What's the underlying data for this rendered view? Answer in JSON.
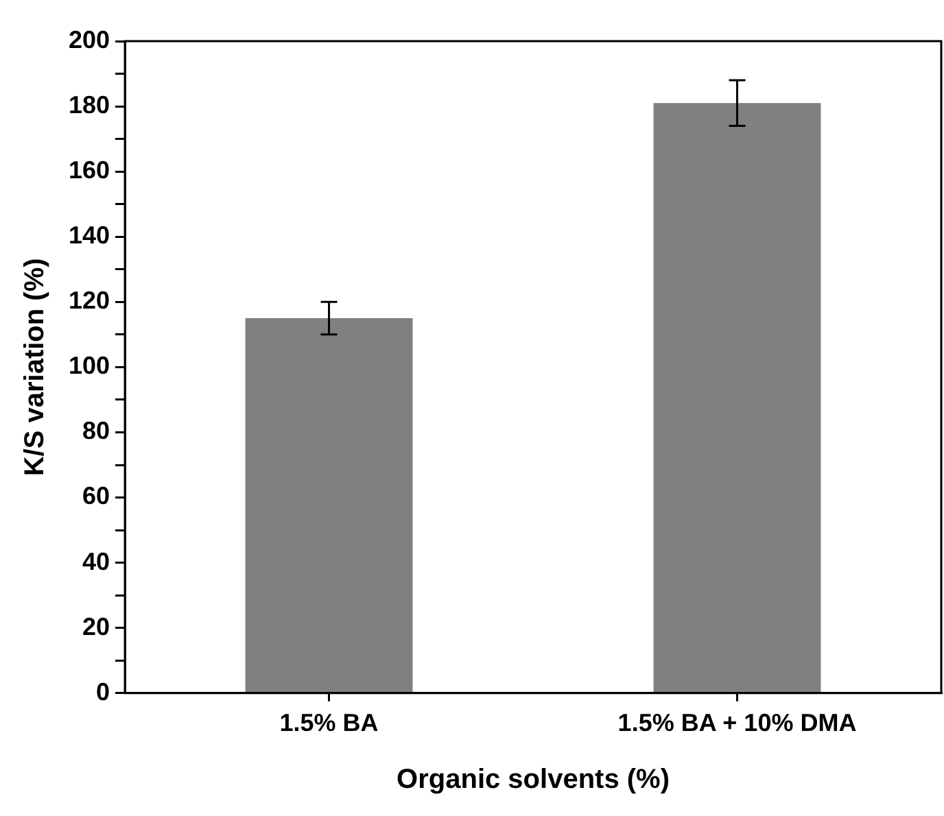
{
  "chart_data": {
    "type": "bar",
    "xlabel": "Organic solvents (%)",
    "ylabel": "K/S variation (%)",
    "categories": [
      "1.5% BA",
      "1.5% BA + 10% DMA"
    ],
    "values": [
      115,
      181
    ],
    "errors": [
      5,
      7
    ],
    "color": "#808080",
    "ylim": [
      0,
      200
    ],
    "yticks": [
      0,
      {
        "value": 10,
        "label": null
      },
      20,
      {
        "value": 30,
        "label": null
      },
      40,
      {
        "value": 50,
        "label": null
      },
      60,
      {
        "value": 70,
        "label": null
      },
      80,
      {
        "value": 90,
        "label": null
      },
      100,
      {
        "value": 110,
        "label": null
      },
      120,
      {
        "value": 130,
        "label": null
      },
      140,
      {
        "value": 150,
        "label": null
      },
      160,
      {
        "value": 170,
        "label": null
      },
      180,
      {
        "value": 190,
        "label": null
      },
      200
    ],
    "grid": false,
    "legend": false
  }
}
